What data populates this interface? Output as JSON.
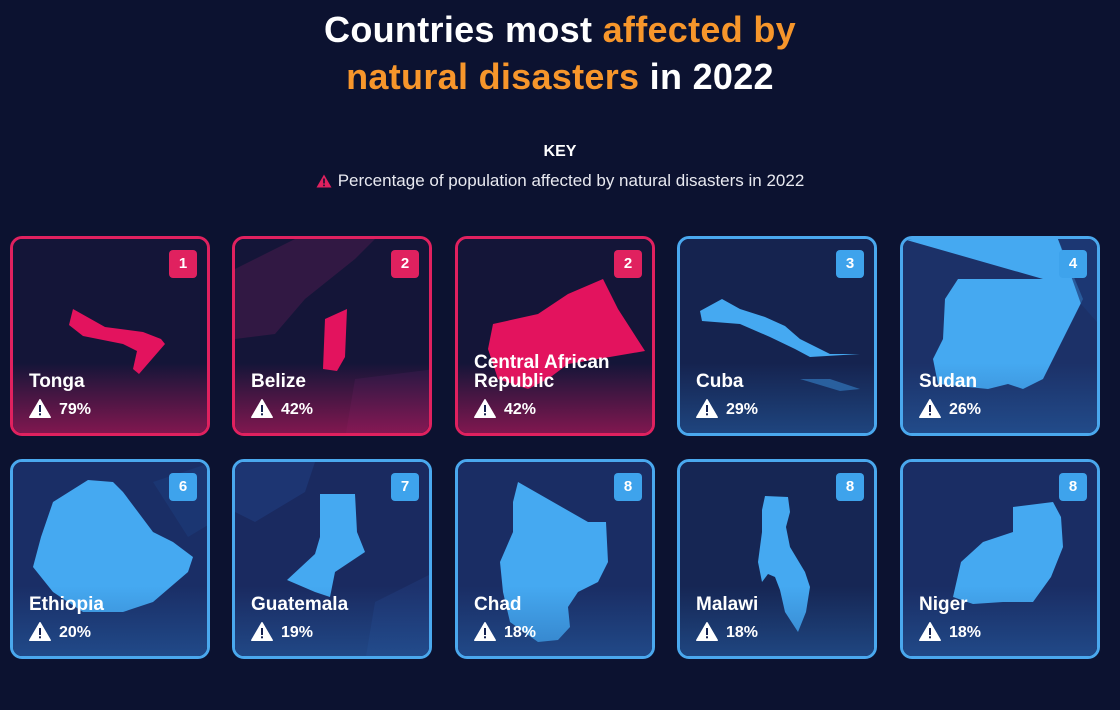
{
  "title": {
    "part1": "Countries most ",
    "highlight1": "affected by",
    "highlight2": "natural disasters",
    "part2": " in 2022"
  },
  "key": {
    "heading": "KEY",
    "label": "Percentage of population affected by natural disasters in 2022"
  },
  "colors": {
    "background": "#0c1230",
    "highlight": "#f7962b",
    "pink": "#e0215f",
    "blue": "#4aa8ee"
  },
  "chart_data": {
    "type": "table",
    "title": "Countries most affected by natural disasters in 2022",
    "unit": "%",
    "rows": [
      {
        "rank": "1",
        "country": "Tonga",
        "value": 79,
        "label": "79%",
        "tier": "pink"
      },
      {
        "rank": "2",
        "country": "Belize",
        "value": 42,
        "label": "42%",
        "tier": "pink"
      },
      {
        "rank": "2",
        "country": "Central African Republic",
        "value": 42,
        "label": "42%",
        "tier": "pink"
      },
      {
        "rank": "3",
        "country": "Cuba",
        "value": 29,
        "label": "29%",
        "tier": "blue"
      },
      {
        "rank": "4",
        "country": "Sudan",
        "value": 26,
        "label": "26%",
        "tier": "blue"
      },
      {
        "rank": "6",
        "country": "Ethiopia",
        "value": 20,
        "label": "20%",
        "tier": "blue"
      },
      {
        "rank": "7",
        "country": "Guatemala",
        "value": 19,
        "label": "19%",
        "tier": "blue"
      },
      {
        "rank": "8",
        "country": "Chad",
        "value": 18,
        "label": "18%",
        "tier": "blue"
      },
      {
        "rank": "8",
        "country": "Malawi",
        "value": 18,
        "label": "18%",
        "tier": "blue"
      },
      {
        "rank": "8",
        "country": "Niger",
        "value": 18,
        "label": "18%",
        "tier": "blue"
      }
    ]
  }
}
